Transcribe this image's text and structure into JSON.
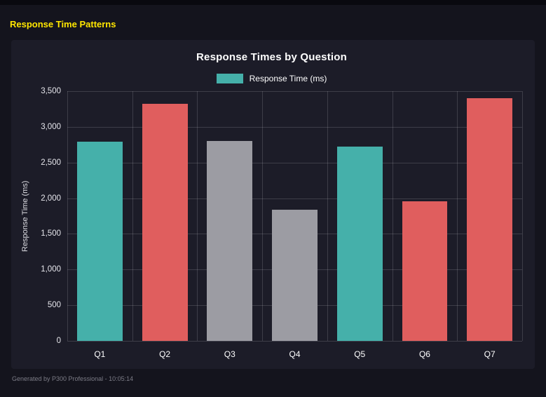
{
  "page": {
    "title": "Response Time Patterns",
    "footer": "Generated by P300 Professional - 10:05:14"
  },
  "chart_data": {
    "type": "bar",
    "title": "Response Times by Question",
    "xlabel": "",
    "ylabel": "Response Time (ms)",
    "categories": [
      "Q1",
      "Q2",
      "Q3",
      "Q4",
      "Q5",
      "Q6",
      "Q7"
    ],
    "series": [
      {
        "name": "Response Time (ms)",
        "values": [
          2790,
          3320,
          2800,
          1840,
          2720,
          1960,
          3400
        ]
      }
    ],
    "bar_colors": [
      "#45b0aa",
      "#e05e5e",
      "#9c9ca3",
      "#9c9ca3",
      "#45b0aa",
      "#e05e5e",
      "#e05e5e"
    ],
    "legend": [
      {
        "label": "Response Time (ms)",
        "color": "#45b0aa"
      }
    ],
    "legend_position": "top",
    "ylim": [
      0,
      3500
    ],
    "ytick_step": 500,
    "yticks": [
      "0",
      "500",
      "1,000",
      "1,500",
      "2,000",
      "2,500",
      "3,000",
      "3,500"
    ],
    "grid": true,
    "colors": {
      "background": "#14141d",
      "panel": "#1c1c28",
      "accent_title": "#ffe600",
      "gridline": "rgba(255,255,255,0.15)"
    }
  }
}
